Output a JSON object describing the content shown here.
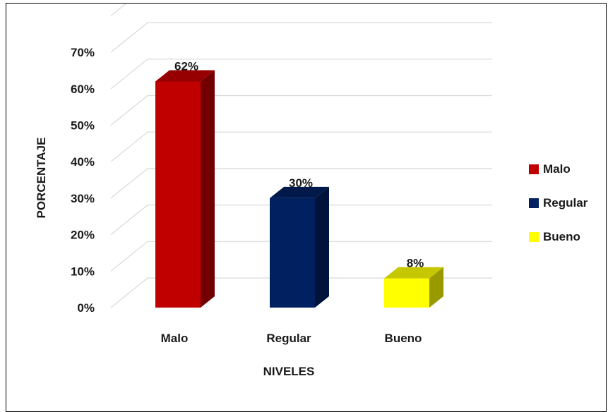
{
  "chart_data": {
    "type": "bar",
    "categories": [
      "Malo",
      "Regular",
      "Bueno"
    ],
    "values": [
      62,
      30,
      8
    ],
    "data_labels": [
      "62%",
      "30%",
      "8%"
    ],
    "xlabel": "NIVELES",
    "ylabel": "PORCENTAJE",
    "ylim": [
      0,
      70
    ],
    "yticks": [
      "0%",
      "10%",
      "20%",
      "30%",
      "40%",
      "50%",
      "60%",
      "70%"
    ],
    "grid": true,
    "legend_position": "right",
    "legend": [
      "Malo",
      "Regular",
      "Bueno"
    ],
    "colors": {
      "Malo": "#c00000",
      "Regular": "#002060",
      "Bueno": "#ffff00"
    }
  }
}
